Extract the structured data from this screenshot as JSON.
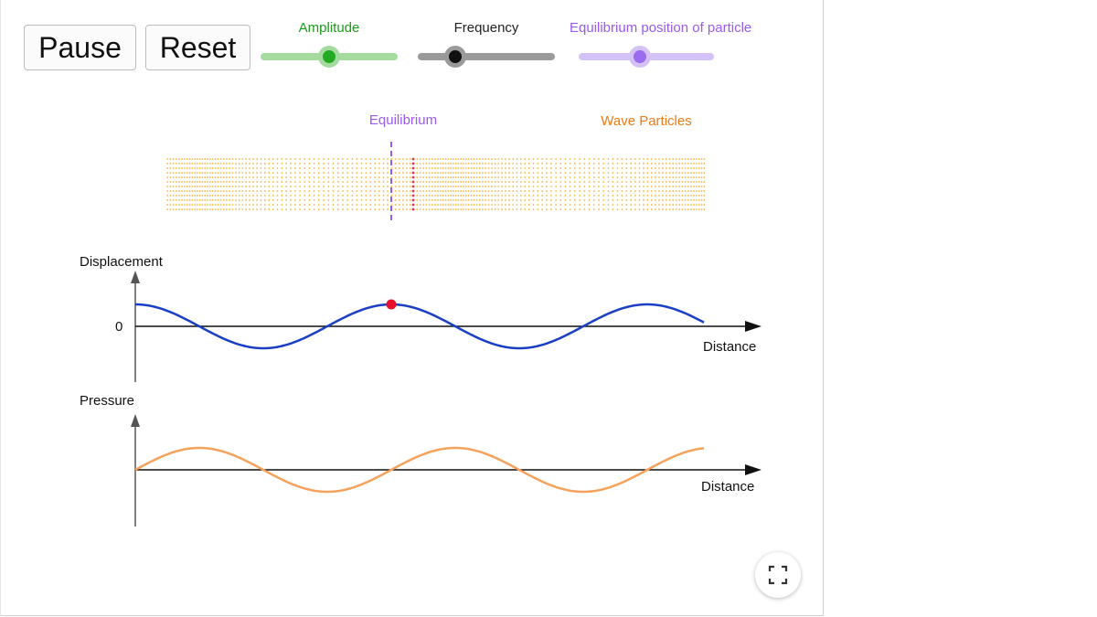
{
  "controls": {
    "pause_label": "Pause",
    "reset_label": "Reset"
  },
  "sliders": {
    "amplitude": {
      "label": "Amplitude",
      "value": 0.5,
      "color": "#1a9b1a",
      "track": "#a6dba0",
      "knob": "#22aa22"
    },
    "frequency": {
      "label": "Frequency",
      "value": 0.27,
      "color": "#222222",
      "track": "#9a9a9a",
      "knob": "#111111"
    },
    "equilibrium": {
      "label": "Equilibrium position of particle",
      "value": 0.45,
      "color": "#9b59f0",
      "track": "#d4c2f7",
      "knob": "#9b6cf0"
    }
  },
  "particles": {
    "equilibrium_label": "Equilibrium",
    "wave_label": "Wave Particles",
    "equilibrium_color": "#9b59f0",
    "particle_color": "#f2b33d",
    "tracked_color": "#e8334a"
  },
  "displacement_graph": {
    "ylabel": "Displacement",
    "zero_label": "0",
    "xlabel": "Distance",
    "curve_color": "#1a3fc4",
    "marker_color": "#e8102c"
  },
  "pressure_graph": {
    "ylabel": "Pressure",
    "xlabel": "Distance",
    "curve_color": "#f5a25d"
  },
  "toolbar": {
    "fullscreen_icon": "fullscreen-icon"
  }
}
